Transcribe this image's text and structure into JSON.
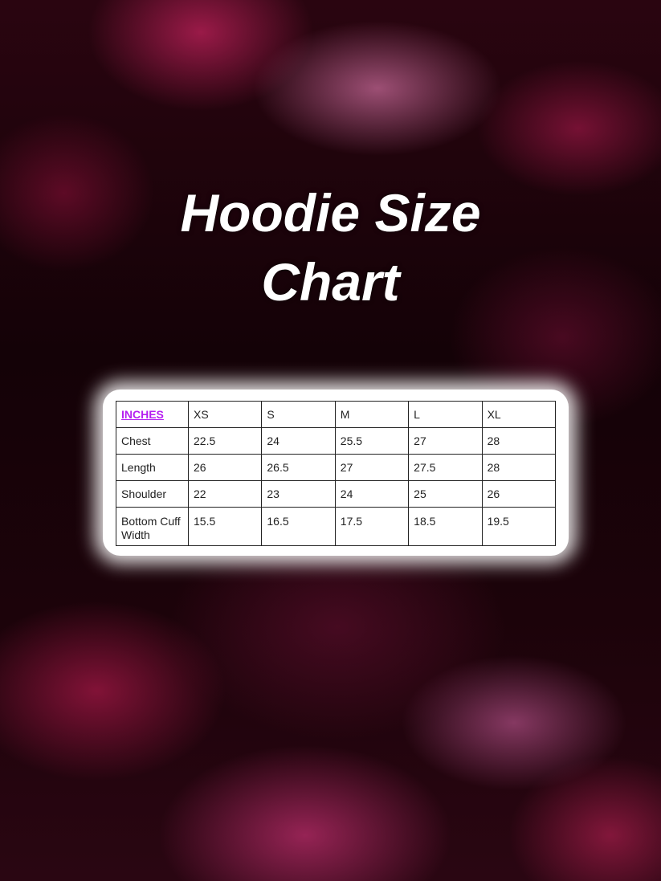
{
  "title_lines": [
    "Hoodie Size",
    "Chart"
  ],
  "accent_color": "#b51ef0",
  "chart_data": {
    "type": "table",
    "unit_header": "INCHES",
    "columns": [
      "XS",
      "S",
      "M",
      "L",
      "XL"
    ],
    "rows": [
      {
        "label": "Chest",
        "values": [
          "22.5",
          "24",
          "25.5",
          "27",
          "28"
        ]
      },
      {
        "label": "Length",
        "values": [
          "26",
          "26.5",
          "27",
          "27.5",
          "28"
        ]
      },
      {
        "label": "Shoulder",
        "values": [
          "22",
          "23",
          "24",
          "25",
          "26"
        ]
      },
      {
        "label": "Bottom Cuff Width",
        "values": [
          "15.5",
          "16.5",
          "17.5",
          "18.5",
          "19.5"
        ]
      }
    ]
  }
}
